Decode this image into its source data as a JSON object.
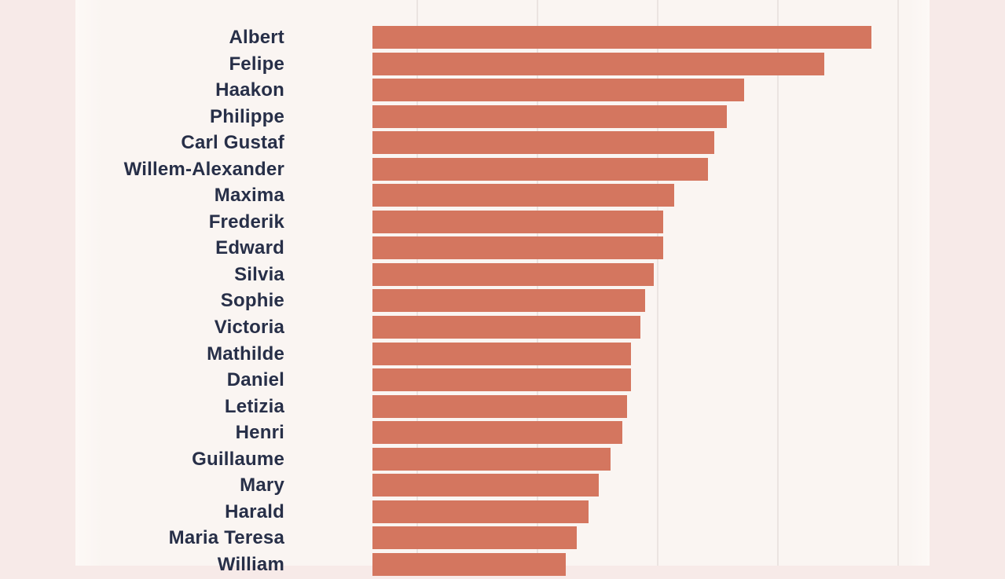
{
  "chart_data": {
    "type": "bar",
    "orientation": "horizontal",
    "title": "",
    "subtitle": "",
    "xlabel": "",
    "ylabel": "",
    "categories": [
      "Albert",
      "Felipe",
      "Haakon",
      "Philippe",
      "Carl Gustaf",
      "Willem-Alexander",
      "Maxima",
      "Frederik",
      "Edward",
      "Silvia",
      "Sophie",
      "Victoria",
      "Mathilde",
      "Daniel",
      "Letizia",
      "Henri",
      "Guillaume",
      "Mary",
      "Harald",
      "Maria Teresa",
      "William"
    ],
    "values": [
      4.15,
      3.76,
      3.09,
      2.95,
      2.84,
      2.79,
      2.51,
      2.42,
      2.42,
      2.34,
      2.27,
      2.23,
      2.15,
      2.15,
      2.12,
      2.08,
      1.98,
      1.88,
      1.8,
      1.7,
      1.61
    ],
    "value_units": "gridline intervals (axis tick labels cropped out of view)",
    "xlim": [
      0,
      5.26
    ],
    "gridline_positions_units": [
      1,
      2,
      3,
      4,
      5
    ],
    "grid": "vertical gridlines only",
    "legend": "none",
    "notes": "chart cropped at bottom; last row (William) partially visible",
    "colors": {
      "bar": "#d4765f",
      "label_text": "#272f48",
      "panel_background": "#faf5f2",
      "outer_background": "#f7eae8",
      "gridline": "#ebe4e1"
    }
  }
}
